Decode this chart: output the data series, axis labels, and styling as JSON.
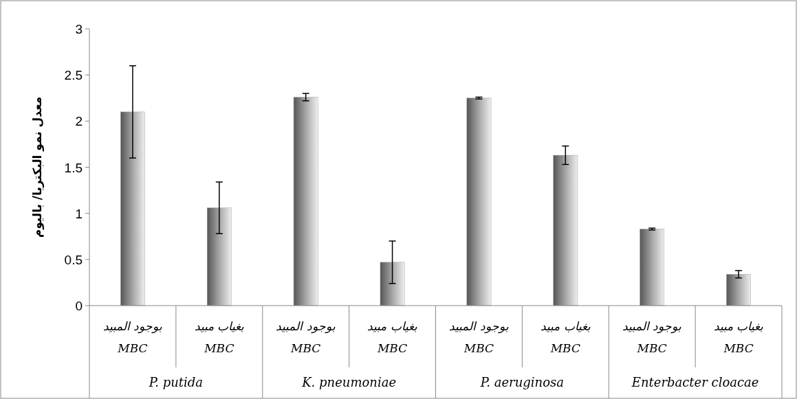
{
  "chart_data": {
    "type": "bar",
    "ylabel": "معدل نمو البكتريا/ باليوم",
    "categories": [
      "بوجود المبيد\nMBC",
      "بغياب مبيد\nMBC",
      "بوجود المبيد\nMBC",
      "بغياب مبيد\nMBC",
      "بوجود المبيد\nMBC",
      "بغياب مبيد\nMBC",
      "بوجود المبيد\nMBC",
      "بغياب مبيد\nMBC"
    ],
    "values": [
      2.1,
      1.06,
      2.26,
      0.47,
      2.25,
      1.63,
      0.83,
      0.34
    ],
    "errors": [
      0.5,
      [
        0.78,
        1.34
      ],
      0.04,
      [
        0.24,
        0.7
      ],
      0.01,
      0.1,
      0.01,
      0.04
    ],
    "color": "#a6a6a6",
    "annotations": [
      "P. putida",
      "K. pneumoniae",
      "P. aeruginosa",
      "Enterbacter cloacae"
    ],
    "ylim": [
      0,
      3
    ],
    "yticks": [
      0,
      0.5,
      1,
      1.5,
      2,
      2.5,
      3
    ],
    "grid": false
  }
}
